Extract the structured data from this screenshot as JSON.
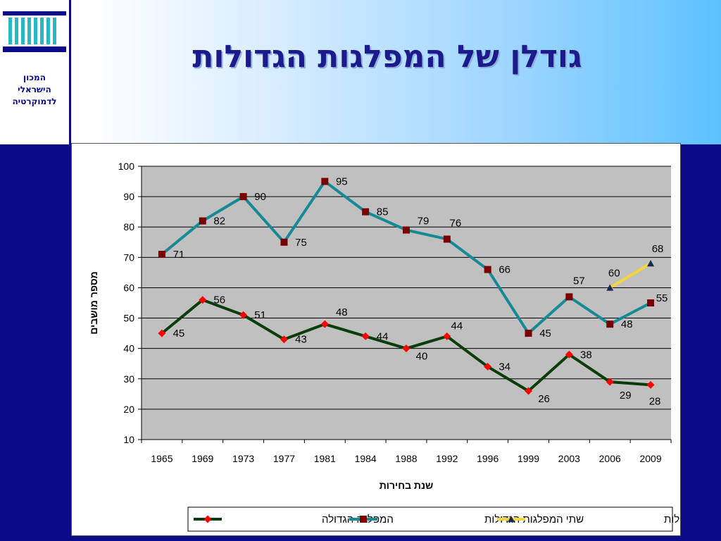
{
  "header": {
    "title": "גודלן של המפלגות הגדולות",
    "logo_text": [
      "המכון",
      "הישראלי",
      "לדמוקרטיה"
    ],
    "logo_icon": "building-columns-icon"
  },
  "colors": {
    "background": "#0b0b8a",
    "plot_area": "#c0c0c0",
    "largest_party_line": "#0a3d0a",
    "largest_party_marker": "#ff0000",
    "two_largest_line": "#158a94",
    "two_largest_marker": "#7a0000",
    "three_largest_line": "#f5d43a",
    "three_largest_marker": "#1a2a4a"
  },
  "chart_data": {
    "type": "line",
    "categories": [
      "1965",
      "1969",
      "1973",
      "1977",
      "1981",
      "1984",
      "1988",
      "1992",
      "1996",
      "1999",
      "2003",
      "2006",
      "2009"
    ],
    "ylabel": "מספר מושבים",
    "xlabel": "שנת בחירות",
    "ylim": [
      10,
      100
    ],
    "yticks": [
      10,
      20,
      30,
      40,
      50,
      60,
      70,
      80,
      90,
      100
    ],
    "grid": true,
    "legend_position": "bottom-center",
    "series": [
      {
        "name": "המפלגה הגדולה",
        "values": [
          45,
          56,
          51,
          43,
          48,
          44,
          40,
          44,
          34,
          26,
          38,
          29,
          28
        ]
      },
      {
        "name": "שתי המפלגות הגדולות",
        "values": [
          71,
          82,
          90,
          75,
          95,
          85,
          79,
          76,
          66,
          45,
          57,
          48,
          55
        ]
      },
      {
        "name": "שלוש המפלגות הגדולות",
        "values": [
          null,
          null,
          null,
          null,
          null,
          null,
          null,
          null,
          null,
          null,
          null,
          60,
          68
        ]
      }
    ]
  }
}
